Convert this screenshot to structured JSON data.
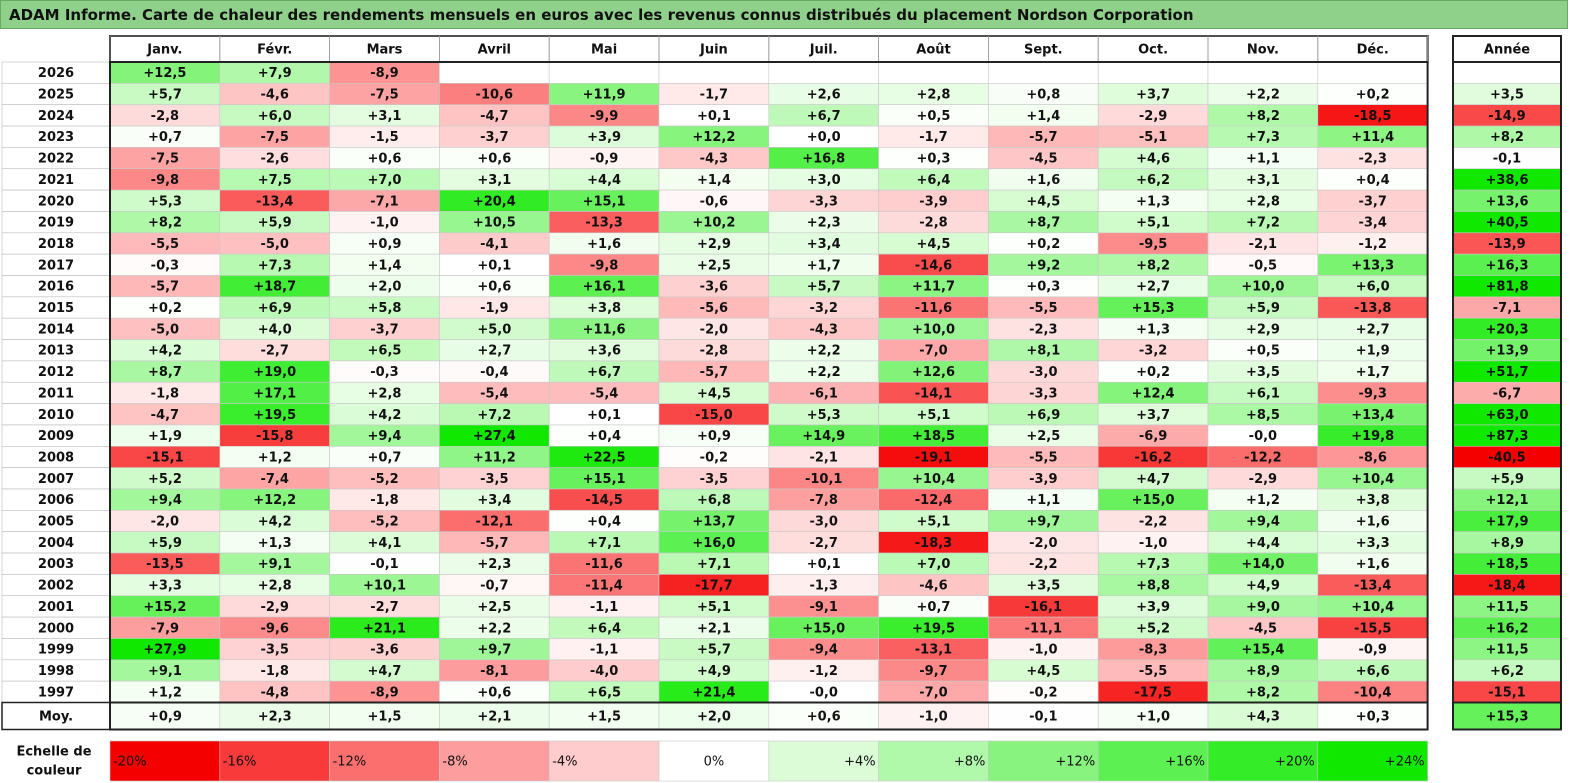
{
  "title": "ADAM Informe. Carte de chaleur des rendements mensuels en euros avec les revenus connus distribués du placement Nordson Corporation",
  "chart_data": {
    "type": "heatmap",
    "columns": [
      "Janv.",
      "Févr.",
      "Mars",
      "Avril",
      "Mai",
      "Juin",
      "Juil.",
      "Août",
      "Sept.",
      "Oct.",
      "Nov.",
      "Déc."
    ],
    "year_column_label": "Année",
    "rows": [
      {
        "label": "2026",
        "months": [
          "+12,5",
          "+7,9",
          "-8,9",
          "",
          "",
          "",
          "",
          "",
          "",
          "",
          "",
          ""
        ],
        "year": ""
      },
      {
        "label": "2025",
        "months": [
          "+5,7",
          "-4,6",
          "-7,5",
          "-10,6",
          "+11,9",
          "-1,7",
          "+2,6",
          "+2,8",
          "+0,8",
          "+3,7",
          "+2,2",
          "+0,2"
        ],
        "year": "+3,5"
      },
      {
        "label": "2024",
        "months": [
          "-2,8",
          "+6,0",
          "+3,1",
          "-4,7",
          "-9,9",
          "+0,1",
          "+6,7",
          "+0,5",
          "+1,4",
          "-2,9",
          "+8,2",
          "-18,5"
        ],
        "year": "-14,9"
      },
      {
        "label": "2023",
        "months": [
          "+0,7",
          "-7,5",
          "-1,5",
          "-3,7",
          "+3,9",
          "+12,2",
          "+0,0",
          "-1,7",
          "-5,7",
          "-5,1",
          "+7,3",
          "+11,4"
        ],
        "year": "+8,2"
      },
      {
        "label": "2022",
        "months": [
          "-7,5",
          "-2,6",
          "+0,6",
          "+0,6",
          "-0,9",
          "-4,3",
          "+16,8",
          "+0,3",
          "-4,5",
          "+4,6",
          "+1,1",
          "-2,3"
        ],
        "year": "-0,1"
      },
      {
        "label": "2021",
        "months": [
          "-9,8",
          "+7,5",
          "+7,0",
          "+3,1",
          "+4,4",
          "+1,4",
          "+3,0",
          "+6,4",
          "+1,6",
          "+6,2",
          "+3,1",
          "+0,4"
        ],
        "year": "+38,6"
      },
      {
        "label": "2020",
        "months": [
          "+5,3",
          "-13,4",
          "-7,1",
          "+20,4",
          "+15,1",
          "-0,6",
          "-3,3",
          "-3,9",
          "+4,5",
          "+1,3",
          "+2,8",
          "-3,7"
        ],
        "year": "+13,6"
      },
      {
        "label": "2019",
        "months": [
          "+8,2",
          "+5,9",
          "-1,0",
          "+10,5",
          "-13,3",
          "+10,2",
          "+2,3",
          "-2,8",
          "+8,7",
          "+5,1",
          "+7,2",
          "-3,4"
        ],
        "year": "+40,5"
      },
      {
        "label": "2018",
        "months": [
          "-5,5",
          "-5,0",
          "+0,9",
          "-4,1",
          "+1,6",
          "+2,9",
          "+3,4",
          "+4,5",
          "+0,2",
          "-9,5",
          "-2,1",
          "-1,2"
        ],
        "year": "-13,9"
      },
      {
        "label": "2017",
        "months": [
          "-0,3",
          "+7,3",
          "+1,4",
          "+0,1",
          "-9,8",
          "+2,5",
          "+1,7",
          "-14,6",
          "+9,2",
          "+8,2",
          "-0,5",
          "+13,3"
        ],
        "year": "+16,3"
      },
      {
        "label": "2016",
        "months": [
          "-5,7",
          "+18,7",
          "+2,0",
          "+0,6",
          "+16,1",
          "-3,6",
          "+5,7",
          "+11,7",
          "+0,3",
          "+2,7",
          "+10,0",
          "+6,0"
        ],
        "year": "+81,8"
      },
      {
        "label": "2015",
        "months": [
          "+0,2",
          "+6,9",
          "+5,8",
          "-1,9",
          "+3,8",
          "-5,6",
          "-3,2",
          "-11,6",
          "-5,5",
          "+15,3",
          "+5,9",
          "-13,8"
        ],
        "year": "-7,1"
      },
      {
        "label": "2014",
        "months": [
          "-5,0",
          "+4,0",
          "-3,7",
          "+5,0",
          "+11,6",
          "-2,0",
          "-4,3",
          "+10,0",
          "-2,3",
          "+1,3",
          "+2,9",
          "+2,7"
        ],
        "year": "+20,3"
      },
      {
        "label": "2013",
        "months": [
          "+4,2",
          "-2,7",
          "+6,5",
          "+2,7",
          "+3,6",
          "-2,8",
          "+2,2",
          "-7,0",
          "+8,1",
          "-3,2",
          "+0,5",
          "+1,9"
        ],
        "year": "+13,9"
      },
      {
        "label": "2012",
        "months": [
          "+8,7",
          "+19,0",
          "-0,3",
          "-0,4",
          "+6,7",
          "-5,7",
          "+2,2",
          "+12,6",
          "-3,0",
          "+0,2",
          "+3,5",
          "+1,7"
        ],
        "year": "+51,7"
      },
      {
        "label": "2011",
        "months": [
          "-1,8",
          "+17,1",
          "+2,8",
          "-5,4",
          "-5,4",
          "+4,5",
          "-6,1",
          "-14,1",
          "-3,3",
          "+12,4",
          "+6,1",
          "-9,3"
        ],
        "year": "-6,7"
      },
      {
        "label": "2010",
        "months": [
          "-4,7",
          "+19,5",
          "+4,2",
          "+7,2",
          "+0,1",
          "-15,0",
          "+5,3",
          "+5,1",
          "+6,9",
          "+3,7",
          "+8,5",
          "+13,4"
        ],
        "year": "+63,0"
      },
      {
        "label": "2009",
        "months": [
          "+1,9",
          "-15,8",
          "+9,4",
          "+27,4",
          "+0,4",
          "+0,9",
          "+14,9",
          "+18,5",
          "+2,5",
          "-6,9",
          "-0,0",
          "+19,8"
        ],
        "year": "+87,3"
      },
      {
        "label": "2008",
        "months": [
          "-15,1",
          "+1,2",
          "+0,7",
          "+11,2",
          "+22,5",
          "-0,2",
          "-2,1",
          "-19,1",
          "-5,5",
          "-16,2",
          "-12,2",
          "-8,6"
        ],
        "year": "-40,5"
      },
      {
        "label": "2007",
        "months": [
          "+5,2",
          "-7,4",
          "-5,2",
          "-3,5",
          "+15,1",
          "-3,5",
          "-10,1",
          "+10,4",
          "-3,9",
          "+4,7",
          "-2,9",
          "+10,4"
        ],
        "year": "+5,9"
      },
      {
        "label": "2006",
        "months": [
          "+9,4",
          "+12,2",
          "-1,8",
          "+3,4",
          "-14,5",
          "+6,8",
          "-7,8",
          "-12,4",
          "+1,1",
          "+15,0",
          "+1,2",
          "+3,8"
        ],
        "year": "+12,1"
      },
      {
        "label": "2005",
        "months": [
          "-2,0",
          "+4,2",
          "-5,2",
          "-12,1",
          "+0,4",
          "+13,7",
          "-3,0",
          "+5,1",
          "+9,7",
          "-2,2",
          "+9,4",
          "+1,6"
        ],
        "year": "+17,9"
      },
      {
        "label": "2004",
        "months": [
          "+5,9",
          "+1,3",
          "+4,1",
          "-5,7",
          "+7,1",
          "+16,0",
          "-2,7",
          "-18,3",
          "-2,0",
          "-1,0",
          "+4,4",
          "+3,3"
        ],
        "year": "+8,9"
      },
      {
        "label": "2003",
        "months": [
          "-13,5",
          "+9,1",
          "-0,1",
          "+2,3",
          "-11,6",
          "+7,1",
          "+0,1",
          "+7,0",
          "-2,2",
          "+7,3",
          "+14,0",
          "+1,6"
        ],
        "year": "+18,5"
      },
      {
        "label": "2002",
        "months": [
          "+3,3",
          "+2,8",
          "+10,1",
          "-0,7",
          "-11,4",
          "-17,7",
          "-1,3",
          "-4,6",
          "+3,5",
          "+8,8",
          "+4,9",
          "-13,4"
        ],
        "year": "-18,4"
      },
      {
        "label": "2001",
        "months": [
          "+15,2",
          "-2,9",
          "-2,7",
          "+2,5",
          "-1,1",
          "+5,1",
          "-9,1",
          "+0,7",
          "-16,1",
          "+3,9",
          "+9,0",
          "+10,4"
        ],
        "year": "+11,5"
      },
      {
        "label": "2000",
        "months": [
          "-7,9",
          "-9,6",
          "+21,1",
          "+2,2",
          "+6,4",
          "+2,1",
          "+15,0",
          "+19,5",
          "-11,1",
          "+5,2",
          "-4,5",
          "-15,5"
        ],
        "year": "+16,2"
      },
      {
        "label": "1999",
        "months": [
          "+27,9",
          "-3,5",
          "-3,6",
          "+9,7",
          "-1,1",
          "+5,7",
          "-9,4",
          "-13,1",
          "-1,0",
          "-8,3",
          "+15,4",
          "-0,9"
        ],
        "year": "+11,5"
      },
      {
        "label": "1998",
        "months": [
          "+9,1",
          "-1,8",
          "+4,7",
          "-8,1",
          "-4,0",
          "+4,9",
          "-1,2",
          "-9,7",
          "+4,5",
          "-5,5",
          "+8,9",
          "+6,6"
        ],
        "year": "+6,2"
      },
      {
        "label": "1997",
        "months": [
          "+1,2",
          "-4,8",
          "-8,9",
          "+0,6",
          "+6,5",
          "+21,4",
          "-0,0",
          "-7,0",
          "-0,2",
          "-17,5",
          "+8,2",
          "-10,4"
        ],
        "year": "-15,1"
      }
    ],
    "average_row": {
      "label": "Moy.",
      "months": [
        "+0,9",
        "+2,3",
        "+1,5",
        "+2,1",
        "+1,5",
        "+2,0",
        "+0,6",
        "-1,0",
        "-0,1",
        "+1,0",
        "+4,3",
        "+0,3"
      ],
      "year": "+15,3"
    },
    "color_scale": {
      "label_line1": "Echelle de",
      "label_line2": "couleur",
      "stops": [
        {
          "label": "-20%",
          "value": -20,
          "color": "#f40000"
        },
        {
          "label": "-16%",
          "value": -16,
          "color": "#f83a3a"
        },
        {
          "label": "-12%",
          "value": -12,
          "color": "#fb6f6f"
        },
        {
          "label": "-8%",
          "value": -8,
          "color": "#fd9d9d"
        },
        {
          "label": "-4%",
          "value": -4,
          "color": "#fecccc"
        },
        {
          "label": "0%",
          "value": 0,
          "color": "#ffffff"
        },
        {
          "label": "+4%",
          "value": 4,
          "color": "#dcfcd8"
        },
        {
          "label": "+8%",
          "value": 8,
          "color": "#b0f8aa"
        },
        {
          "label": "+12%",
          "value": 12,
          "color": "#88f47f"
        },
        {
          "label": "+16%",
          "value": 16,
          "color": "#5df052"
        },
        {
          "label": "+20%",
          "value": 20,
          "color": "#35ec28"
        },
        {
          "label": "+24%",
          "value": 24,
          "color": "#10e800"
        }
      ]
    }
  }
}
